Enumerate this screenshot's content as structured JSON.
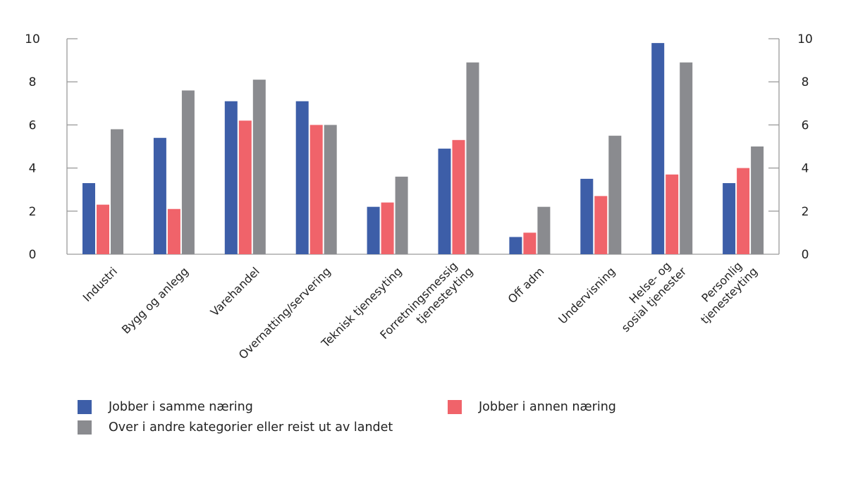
{
  "chart_data": {
    "type": "bar",
    "title": "",
    "xlabel": "",
    "ylabel": "",
    "ylim": [
      0,
      10
    ],
    "yticks": [
      "0",
      "2",
      "4",
      "6",
      "8",
      "10"
    ],
    "secondary_yticks": [
      "0",
      "2",
      "4",
      "6",
      "8",
      "10"
    ],
    "grid": false,
    "legend_position": "bottom-left",
    "categories": [
      [
        "Industri"
      ],
      [
        "Bygg og anlegg"
      ],
      [
        "Varehandel"
      ],
      [
        "Overnatting/servering"
      ],
      [
        "Teknisk tjenesyting"
      ],
      [
        "Forretningsmessig",
        "tjenesteyting"
      ],
      [
        "Off adm"
      ],
      [
        "Undervisning"
      ],
      [
        "Helse- og",
        "sosial tjenester"
      ],
      [
        "Personlig",
        "tjenesteyting"
      ]
    ],
    "series": [
      {
        "name": "Jobber i samme næring",
        "color": "#3d5ea8",
        "values": [
          3.3,
          5.4,
          7.1,
          7.1,
          2.2,
          4.9,
          0.8,
          3.5,
          9.8,
          3.3
        ]
      },
      {
        "name": "Jobber i annen næring",
        "color": "#f0636a",
        "values": [
          2.3,
          2.1,
          6.2,
          6.0,
          2.4,
          5.3,
          1.0,
          2.7,
          3.7,
          4.0
        ]
      },
      {
        "name": "Over i andre kategorier eller reist ut av landet",
        "color": "#8a8b8f",
        "values": [
          5.8,
          7.6,
          8.1,
          6.0,
          3.6,
          8.9,
          2.2,
          5.5,
          8.9,
          5.0
        ]
      }
    ]
  },
  "legend": {
    "items": [
      {
        "label": "Jobber i samme næring",
        "color": "#3d5ea8"
      },
      {
        "label": "Jobber i annen næring",
        "color": "#f0636a"
      },
      {
        "label": "Over i andre kategorier eller reist ut av landet",
        "color": "#8a8b8f"
      }
    ]
  },
  "colors": {
    "axis": "#9a9a9a",
    "text": "#222222"
  }
}
